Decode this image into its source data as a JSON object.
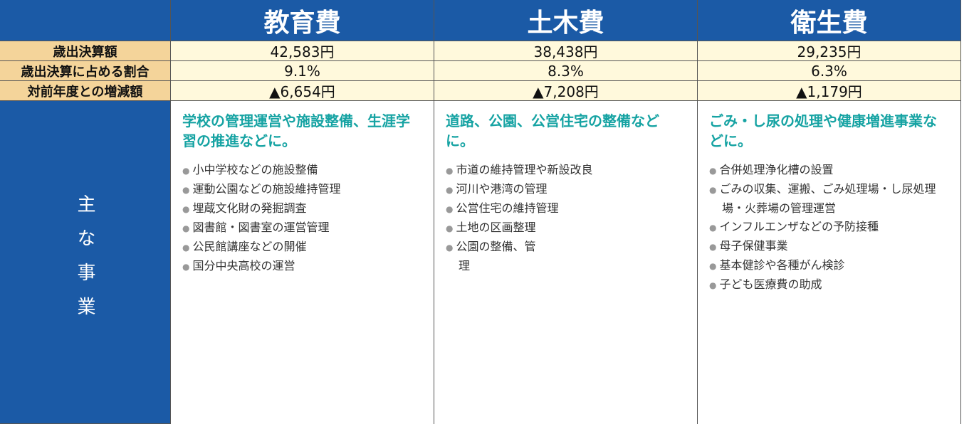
{
  "table": {
    "columns": [
      "教育費",
      "土木費",
      "衛生費"
    ],
    "rows": [
      {
        "label": "歳出決算額",
        "cells": [
          "42,583円",
          "38,438円",
          "29,235円"
        ]
      },
      {
        "label": "歳出決算に占める割合",
        "cells": [
          "9.1%",
          "8.3%",
          "6.3%"
        ]
      },
      {
        "label": "対前年度との増減額",
        "cells": [
          "▲6,654円",
          "▲7,208円",
          "▲1,179円"
        ]
      }
    ]
  },
  "main_projects": {
    "label": "主な事業",
    "columns": [
      {
        "summary": "学校の管理運営や施設整備、生涯学習の推進などに。",
        "items": [
          "小中学校などの施設整備",
          "運動公園などの施設維持管理",
          "埋蔵文化財の発掘調査",
          "図書館・図書室の運営管理",
          "公民館講座などの開催",
          "国分中央高校の運営"
        ]
      },
      {
        "summary": "道路、公園、公営住宅の整備などに。",
        "items": [
          "市道の維持管理や新設改良",
          "河川や港湾の管理",
          "公営住宅の維持管理",
          "土地の区画整理",
          "公園の整備、管理"
        ]
      },
      {
        "summary": "ごみ・し尿の処理や健康増進事業などに。",
        "items": [
          "合併処理浄化槽の設置",
          "ごみの収集、運搬、ごみ処理場・し尿処理場・火葬場の管理運営",
          "インフルエンザなどの予防接種",
          "母子保健事業",
          "基本健診や各種がん検診",
          "子ども医療費の助成"
        ]
      }
    ]
  }
}
